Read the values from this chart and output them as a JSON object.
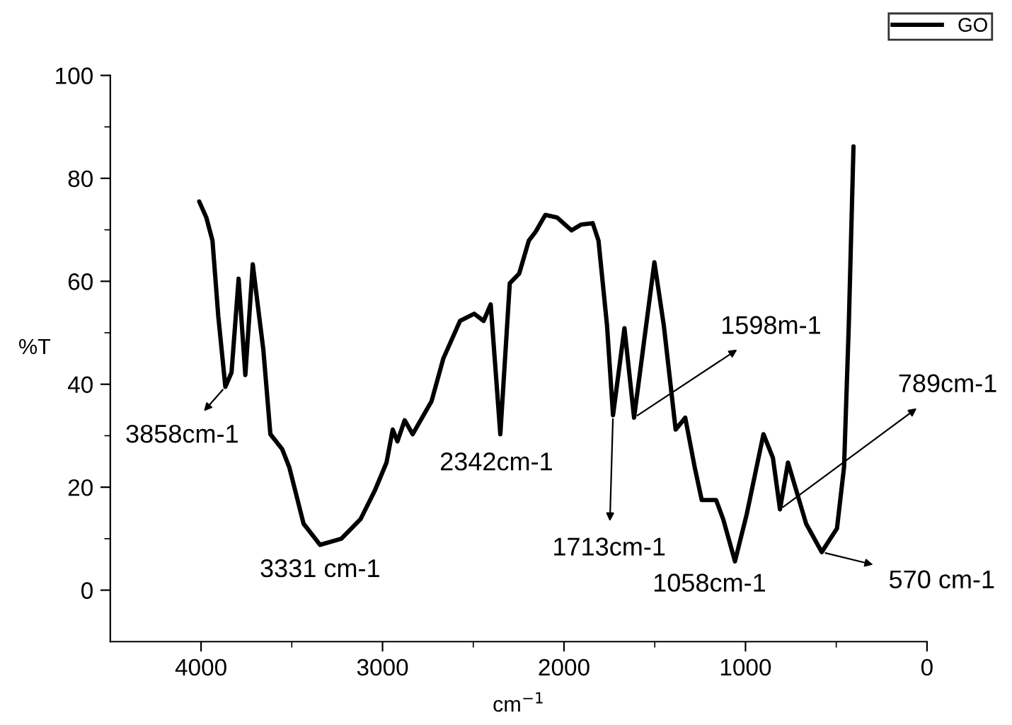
{
  "chart_data": {
    "type": "line",
    "xlabel": "cm$^{−1}$",
    "ylabel": "%T",
    "xlim": [
      4500,
      0
    ],
    "xticks": [
      4000,
      3000,
      2000,
      1000,
      0
    ],
    "ylim": [
      -10,
      100
    ],
    "yticks": [
      0,
      20,
      40,
      60,
      80,
      100
    ],
    "grid": false,
    "legend": "top right",
    "marker": "none",
    "line_style": "solid",
    "series": [
      {
        "name": "GO",
        "color": "#000000",
        "x": [
          4010,
          3971,
          3937,
          3905,
          3866,
          3832,
          3793,
          3756,
          3715,
          3683,
          3657,
          3618,
          3553,
          3514,
          3435,
          3344,
          3227,
          3121,
          3043,
          2978,
          2944,
          2918,
          2878,
          2834,
          2730,
          2665,
          2573,
          2495,
          2443,
          2404,
          2351,
          2299,
          2247,
          2194,
          2155,
          2103,
          2038,
          1959,
          1907,
          1842,
          1810,
          1763,
          1730,
          1667,
          1614,
          1502,
          1450,
          1385,
          1332,
          1280,
          1241,
          1162,
          1123,
          1058,
          993,
          901,
          849,
          810,
          766,
          666,
          580,
          496,
          457,
          431,
          405
        ],
        "values": [
          75.5,
          72.4,
          67.9,
          53.2,
          39.5,
          42.3,
          60.5,
          41.8,
          63.3,
          54.1,
          46.8,
          30.3,
          27.4,
          23.9,
          12.9,
          8.8,
          10,
          13.8,
          19.3,
          24.8,
          31.2,
          28.9,
          33,
          30.3,
          36.7,
          45,
          52.3,
          53.7,
          52.3,
          55.5,
          30.3,
          59.6,
          61.5,
          67.9,
          69.7,
          72.9,
          72.4,
          69.9,
          71,
          71.3,
          67.9,
          51.4,
          34,
          50.9,
          33.5,
          63.7,
          51.4,
          31.2,
          33.5,
          23.9,
          17.5,
          17.5,
          13.8,
          5.6,
          14.8,
          30.3,
          25.7,
          15.7,
          24.8,
          12.9,
          7.4,
          12,
          23.9,
          51.4,
          86.2
        ]
      }
    ],
    "annotations": [
      {
        "text": "3858cm-1",
        "x": 3866,
        "y": 39.5
      },
      {
        "text": "3331 cm-1",
        "x": 3344,
        "y": 8.8
      },
      {
        "text": "2342cm-1",
        "x": 2351,
        "y": 30.3
      },
      {
        "text": "1713cm-1",
        "x": 1730,
        "y": 34
      },
      {
        "text": "1598m-1",
        "x": 1614,
        "y": 33.5
      },
      {
        "text": "1058cm-1",
        "x": 1058,
        "y": 5.6
      },
      {
        "text": "789cm-1",
        "x": 810,
        "y": 15.7
      },
      {
        "text": "570 cm-1",
        "x": 580,
        "y": 7.4
      }
    ]
  }
}
